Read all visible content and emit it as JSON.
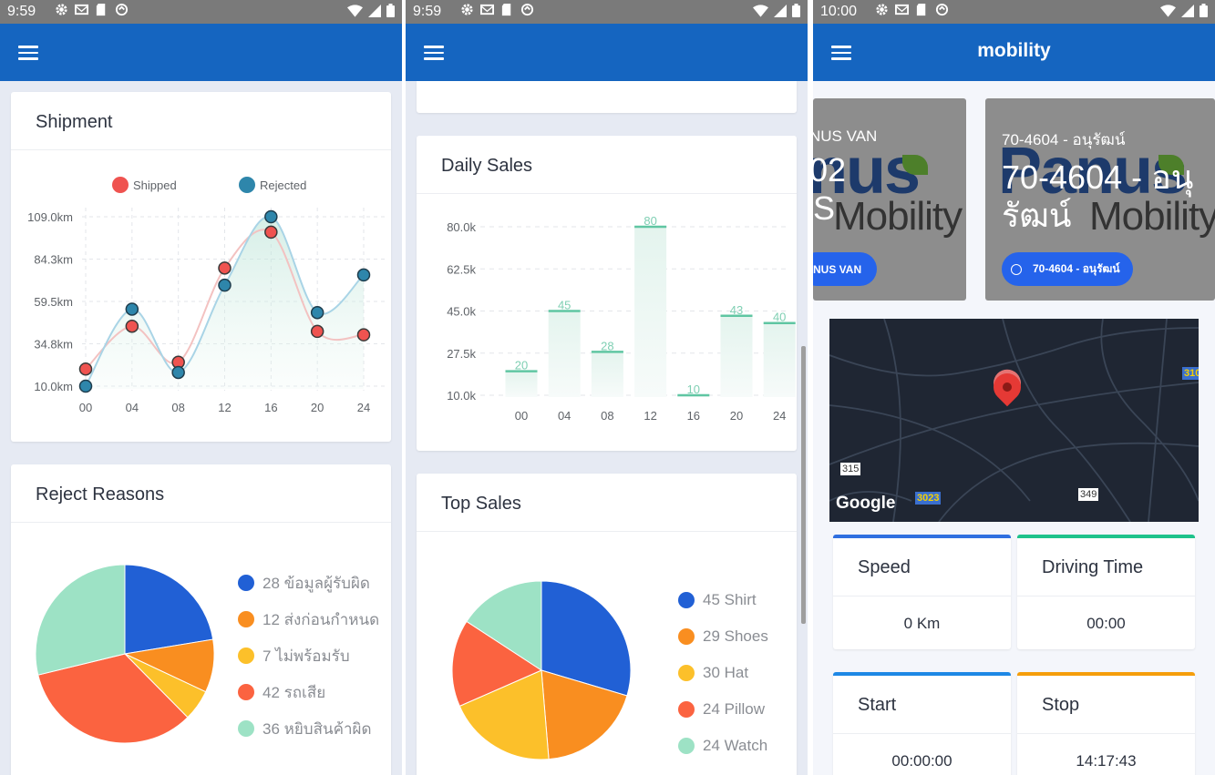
{
  "screens": [
    {
      "status": {
        "time": "9:59"
      },
      "shipment": {
        "title": "Shipment",
        "chart_data": {
          "type": "line",
          "x": [
            "00",
            "04",
            "08",
            "12",
            "16",
            "20",
            "24"
          ],
          "yticks": [
            "109.0km",
            "84.3km",
            "59.5km",
            "34.8km",
            "10.0km"
          ],
          "ylim": [
            10.0,
            109.0
          ],
          "series": [
            {
              "name": "Shipped",
              "color": "#ef5350",
              "values": [
                20,
                45,
                24,
                79,
                100,
                42,
                40
              ]
            },
            {
              "name": "Rejected",
              "color": "#2e86ab",
              "values": [
                10,
                55,
                18,
                69,
                109,
                53,
                75
              ]
            }
          ],
          "smooth": true,
          "legend": "top"
        }
      },
      "reject": {
        "title": "Reject Reasons",
        "chart_data": {
          "type": "pie",
          "slices": [
            {
              "label": "28 ข้อมูลผู้รับผิด",
              "value": 28,
              "color": "#2160d5"
            },
            {
              "label": "12 ส่งก่อนกำหนด",
              "value": 12,
              "color": "#f98e20"
            },
            {
              "label": "7 ไม่พร้อมรับ",
              "value": 7,
              "color": "#fcc02a"
            },
            {
              "label": "42 รถเสีย",
              "value": 42,
              "color": "#fb6340"
            },
            {
              "label": "36 หยิบสินค้าผิด",
              "value": 36,
              "color": "#9de2c5"
            }
          ]
        }
      }
    },
    {
      "status": {
        "time": "9:59"
      },
      "daily": {
        "title": "Daily Sales",
        "chart_data": {
          "type": "bar",
          "categories": [
            "00",
            "04",
            "08",
            "12",
            "16",
            "20",
            "24"
          ],
          "values": [
            20,
            45,
            28,
            80,
            10,
            43,
            40
          ],
          "yticks": [
            "80.0k",
            "62.5k",
            "45.0k",
            "27.5k",
            "10.0k"
          ],
          "ylim": [
            10,
            80
          ]
        }
      },
      "top": {
        "title": "Top Sales",
        "chart_data": {
          "type": "pie",
          "slices": [
            {
              "label": "45 Shirt",
              "value": 45,
              "color": "#2160d5"
            },
            {
              "label": "29 Shoes",
              "value": 29,
              "color": "#f98e20"
            },
            {
              "label": "30 Hat",
              "value": 30,
              "color": "#fcc02a"
            },
            {
              "label": "24 Pillow",
              "value": 24,
              "color": "#fb6340"
            },
            {
              "label": "24 Watch",
              "value": 24,
              "color": "#9de2c5"
            }
          ]
        }
      }
    },
    {
      "status": {
        "time": "10:00"
      },
      "title": "mobility",
      "vehicles": [
        {
          "subtitle": "NUS VAN",
          "big1": "02",
          "big2": "S",
          "chip": "NUS VAN"
        },
        {
          "subtitle": "70-4604 - อนุรัฒน์",
          "big1": "70-4604 - อนุ",
          "big2": "รัฒน์",
          "chip": "70-4604 - อนุรัฒน์"
        }
      ],
      "logo": {
        "text1": "Panus",
        "text2": "Mobility"
      },
      "map": {
        "brand": "Google",
        "roads": [
          "315",
          "3023",
          "349",
          "310"
        ]
      },
      "stats": [
        {
          "label": "Speed",
          "value": "0 Km",
          "color": "#2f6fe0"
        },
        {
          "label": "Driving Time",
          "value": "00:00",
          "color": "#1ec28b"
        },
        {
          "label": "Start",
          "value": "00:00:00",
          "color": "#1e88e5"
        },
        {
          "label": "Stop",
          "value": "14:17:43",
          "color": "#f59e0b"
        }
      ]
    }
  ]
}
